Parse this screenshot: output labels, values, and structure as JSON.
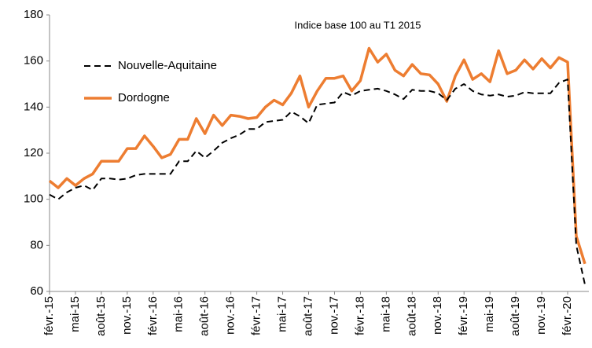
{
  "chart_data": {
    "type": "line",
    "subtitle": "Indice base 100 au T1 2015",
    "categories": [
      "févr.-15",
      null,
      null,
      "mai-15",
      null,
      null,
      "août-15",
      null,
      null,
      "nov.-15",
      null,
      null,
      "févr.-16",
      null,
      null,
      "mai-16",
      null,
      null,
      "août-16",
      null,
      null,
      "nov.-16",
      null,
      null,
      "févr.-17",
      null,
      null,
      "mai-17",
      null,
      null,
      "août-17",
      null,
      null,
      "nov.-17",
      null,
      null,
      "févr.-18",
      null,
      null,
      "mai-18",
      null,
      null,
      "août-18",
      null,
      null,
      "nov.-18",
      null,
      null,
      "févr.-19",
      null,
      null,
      "mai-19",
      null,
      null,
      "août-19",
      null,
      null,
      "nov.-19",
      null,
      null,
      "févr.-20",
      null,
      null
    ],
    "series": [
      {
        "name": "Nouvelle-Aquitaine",
        "color": "#000000",
        "dash": true,
        "values": [
          102,
          100,
          103,
          105,
          106,
          104,
          109,
          109,
          108.5,
          109,
          110.5,
          111,
          111,
          111,
          111,
          116.5,
          116.5,
          121,
          118,
          121,
          124.5,
          126.5,
          128,
          130.5,
          130.5,
          133.5,
          134,
          134.5,
          138,
          136,
          133,
          141,
          141.5,
          142,
          146.5,
          145,
          147,
          147.5,
          148,
          147,
          145.5,
          143.5,
          147.5,
          147,
          147,
          146,
          143,
          148,
          150,
          147,
          145.5,
          145,
          145.5,
          144.5,
          145,
          146.5,
          146,
          146,
          146,
          150.5,
          152,
          80,
          63
        ]
      },
      {
        "name": "Dordogne",
        "color": "#ed7d31",
        "dash": false,
        "values": [
          108,
          105,
          109,
          106,
          109,
          111,
          116.5,
          116.5,
          116.5,
          122,
          122,
          127.5,
          123,
          118,
          119.5,
          126,
          126,
          135,
          128.5,
          136.5,
          132,
          136.5,
          136,
          135,
          135.5,
          140,
          143,
          141,
          146,
          153.5,
          140,
          147,
          152.5,
          152.5,
          153.5,
          147,
          151.5,
          165.5,
          159.5,
          163,
          156,
          153.5,
          158.5,
          154.5,
          154,
          150,
          142.5,
          153.5,
          160.5,
          152,
          154.5,
          151,
          164.5,
          154.5,
          156,
          160.5,
          156.5,
          161,
          157,
          161.5,
          159.5,
          84,
          72
        ]
      }
    ],
    "ylim": [
      60,
      180
    ],
    "yticks": [
      60,
      80,
      100,
      120,
      140,
      160,
      180
    ],
    "grid": false,
    "legend": "top-left"
  }
}
